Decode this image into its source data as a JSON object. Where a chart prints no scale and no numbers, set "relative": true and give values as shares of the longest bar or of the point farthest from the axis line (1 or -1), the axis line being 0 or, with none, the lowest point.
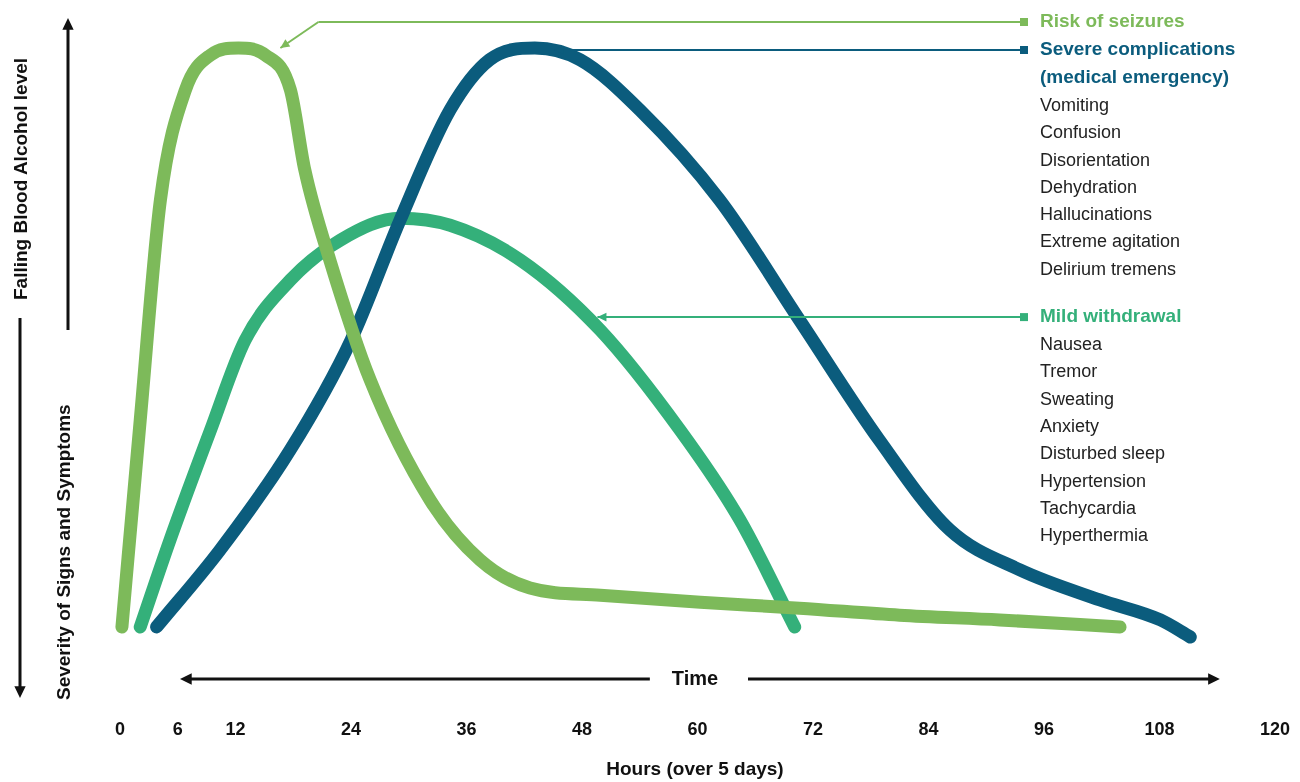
{
  "chart_data": {
    "type": "line",
    "relative": true,
    "xlabel": "Hours (over 5 days)",
    "ylabel": "Severity of Signs and Symptoms",
    "xlim": [
      0,
      120
    ],
    "xticks": [
      0,
      6,
      12,
      24,
      36,
      48,
      60,
      72,
      84,
      96,
      108,
      120
    ],
    "legend": "right",
    "marker": "none",
    "line_style": "solid",
    "grid": false,
    "series": [
      {
        "name": "Risk of seizures",
        "color": "#7dba5a",
        "x": [
          0.2,
          2.1,
          4.2,
          6.8,
          9.4,
          12.3,
          15.1,
          17.7,
          19.2,
          21.8,
          26,
          32.2,
          37.4,
          42.6,
          49.9,
          60.3,
          70.6,
          81,
          91.4,
          103.9
        ],
        "values": [
          0.017,
          0.368,
          0.742,
          0.929,
          0.988,
          1,
          0.988,
          0.929,
          0.793,
          0.64,
          0.436,
          0.233,
          0.131,
          0.083,
          0.071,
          0.059,
          0.049,
          0.037,
          0.029,
          0.017
        ]
      },
      {
        "name": "Severe complications (medical emergency)",
        "color": "#0b5c7d",
        "x": [
          3.8,
          10.4,
          17.7,
          24,
          29.1,
          34.3,
          38.4,
          43.1,
          47.8,
          54,
          62.3,
          70.6,
          78.9,
          86.2,
          93.5,
          101.8,
          108.1,
          111.2
        ],
        "values": [
          0.017,
          0.148,
          0.318,
          0.504,
          0.708,
          0.895,
          0.98,
          1,
          0.98,
          0.895,
          0.742,
          0.538,
          0.334,
          0.182,
          0.114,
          0.063,
          0.029,
          0
        ]
      },
      {
        "name": "Mild withdrawal",
        "color": "#34b07a",
        "x": [
          2.1,
          5.2,
          9.4,
          13,
          17.7,
          22.9,
          29.1,
          34.3,
          41.6,
          49.9,
          58.2,
          64.4,
          70.1
        ],
        "values": [
          0.017,
          0.165,
          0.351,
          0.504,
          0.606,
          0.674,
          0.711,
          0.699,
          0.64,
          0.521,
          0.351,
          0.199,
          0.017
        ]
      }
    ],
    "annotations": [
      "Vomiting\nConfusion\nDisorientation\nDehydration\nHallucinations\nExtreme agitation\nDelirium tremens",
      "Nausea\nTremor\nSweating\nAnxiety\nDisturbed sleep\nHypertension\nTachycardia\nHyperthermia",
      "Time",
      "Falling Blood Alcohol level"
    ]
  }
}
